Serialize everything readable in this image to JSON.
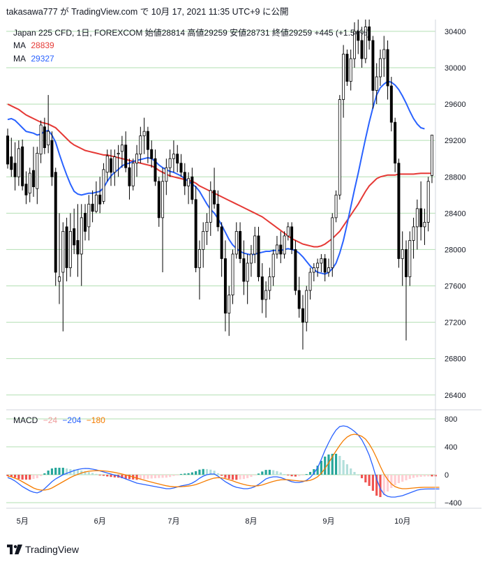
{
  "header": {
    "text": "takasawa777 が TradingView.com で 10月 17, 2021 11:35 UTC+9 に公開"
  },
  "legend": {
    "symbol_line": "Japan 225 CFD, 1日, FOREXCOM  始値28814  高値29259  安値28731  終値29259  +445 (+1.54%)",
    "ma1": {
      "label": "MA",
      "value": "28839",
      "color": "#e53935"
    },
    "ma2": {
      "label": "MA",
      "value": "29327",
      "color": "#2962ff"
    }
  },
  "macd_legend": {
    "label": "MACD",
    "hist": "−24",
    "macd": "−204",
    "signal": "−180",
    "hist_color": "#ef9a9a",
    "macd_color": "#2962ff",
    "signal_color": "#f57c00"
  },
  "footer": {
    "brand": "TradingView"
  },
  "colors": {
    "grid": "#b2dfb2",
    "up": "#ffffff",
    "down": "#000000",
    "wick": "#000000"
  },
  "chart_data": [
    {
      "type": "candlestick",
      "title": "Japan 225 CFD, 1日, FOREXCOM",
      "x_ticks": [
        "5月",
        "6月",
        "7月",
        "8月",
        "9月",
        "10月"
      ],
      "y_ticks": [
        30400,
        30000,
        29600,
        29200,
        28800,
        28400,
        28000,
        27600,
        27200,
        26800,
        26400
      ],
      "ylim": [
        26260,
        30530
      ],
      "last": {
        "open": 28814,
        "high": 29259,
        "low": 28731,
        "close": 29259,
        "change": 445,
        "change_pct": 1.54
      },
      "ohlc": [
        [
          29250,
          29330,
          28890,
          28940
        ],
        [
          29020,
          29230,
          28800,
          28880
        ],
        [
          28950,
          29180,
          28650,
          28800
        ],
        [
          28800,
          29200,
          28700,
          29110
        ],
        [
          29130,
          29210,
          28650,
          28700
        ],
        [
          28720,
          28860,
          28500,
          28600
        ],
        [
          28620,
          28900,
          28520,
          28840
        ],
        [
          28870,
          29130,
          28580,
          28690
        ],
        [
          28670,
          29130,
          28500,
          29060
        ],
        [
          29050,
          29420,
          28950,
          29370
        ],
        [
          29350,
          29450,
          29050,
          29120
        ],
        [
          29150,
          29700,
          29060,
          29300
        ],
        [
          29200,
          29300,
          28700,
          28800
        ],
        [
          28850,
          28900,
          27600,
          27750
        ],
        [
          27650,
          28400,
          27400,
          27700
        ],
        [
          27750,
          28300,
          27100,
          28200
        ],
        [
          28250,
          28350,
          27650,
          27800
        ],
        [
          27800,
          28400,
          27700,
          28200
        ],
        [
          28230,
          28450,
          27950,
          28050
        ],
        [
          28100,
          28500,
          27700,
          27950
        ],
        [
          27950,
          28500,
          27600,
          28350
        ],
        [
          28400,
          28500,
          28100,
          28200
        ],
        [
          28250,
          28600,
          28100,
          28500
        ],
        [
          28500,
          28650,
          28300,
          28420
        ],
        [
          28420,
          28750,
          28400,
          28600
        ],
        [
          28600,
          28800,
          28400,
          28500
        ],
        [
          28530,
          28950,
          28500,
          28880
        ],
        [
          28850,
          29100,
          28750,
          29030
        ],
        [
          29000,
          29100,
          28700,
          28850
        ],
        [
          28850,
          29100,
          28700,
          29020
        ],
        [
          29050,
          29150,
          28800,
          29060
        ],
        [
          29080,
          29250,
          28900,
          29150
        ],
        [
          29150,
          29300,
          28850,
          28900
        ],
        [
          28900,
          29000,
          28550,
          28700
        ],
        [
          28700,
          29000,
          28650,
          28950
        ],
        [
          28950,
          29150,
          28800,
          29050
        ],
        [
          29050,
          29350,
          28950,
          29250
        ],
        [
          29250,
          29450,
          29050,
          29300
        ],
        [
          29300,
          29350,
          28950,
          29100
        ],
        [
          29100,
          29200,
          28900,
          29000
        ],
        [
          29000,
          29100,
          28700,
          28750
        ],
        [
          28750,
          28800,
          28250,
          28350
        ],
        [
          28350,
          28900,
          27750,
          28750
        ],
        [
          28750,
          29000,
          28600,
          28900
        ],
        [
          28900,
          29100,
          28800,
          29000
        ],
        [
          29000,
          29200,
          28850,
          29050
        ],
        [
          29050,
          29150,
          28850,
          28950
        ],
        [
          28950,
          29050,
          28800,
          28850
        ],
        [
          28850,
          28950,
          28600,
          28700
        ],
        [
          28700,
          28850,
          28500,
          28780
        ],
        [
          28800,
          28900,
          28500,
          28550
        ],
        [
          28550,
          28700,
          27750,
          27800
        ],
        [
          27800,
          28100,
          27450,
          28000
        ],
        [
          28000,
          28300,
          27800,
          28200
        ],
        [
          28200,
          28400,
          28050,
          28300
        ],
        [
          28300,
          28750,
          28150,
          28650
        ],
        [
          28650,
          28900,
          28450,
          28500
        ],
        [
          28500,
          28650,
          28200,
          28250
        ],
        [
          28250,
          28300,
          27700,
          27900
        ],
        [
          27900,
          28100,
          27100,
          27300
        ],
        [
          27300,
          27600,
          27050,
          27500
        ],
        [
          27500,
          28000,
          27400,
          27950
        ],
        [
          27950,
          28300,
          27900,
          28200
        ],
        [
          28200,
          28300,
          27850,
          27900
        ],
        [
          27900,
          28100,
          27500,
          27650
        ],
        [
          27650,
          27950,
          27400,
          27850
        ],
        [
          27850,
          28050,
          27700,
          27950
        ],
        [
          27950,
          28250,
          27850,
          28150
        ],
        [
          28150,
          28250,
          27650,
          27700
        ],
        [
          27700,
          27850,
          27300,
          27450
        ],
        [
          27450,
          27650,
          27250,
          27550
        ],
        [
          27550,
          27800,
          27450,
          27700
        ],
        [
          27700,
          28000,
          27600,
          27950
        ],
        [
          27950,
          28150,
          27900,
          28050
        ],
        [
          28050,
          28200,
          27850,
          27950
        ],
        [
          27950,
          28200,
          27900,
          28150
        ],
        [
          28150,
          28300,
          28100,
          28250
        ],
        [
          28250,
          28300,
          27950,
          28000
        ],
        [
          28000,
          28100,
          27500,
          27550
        ],
        [
          27550,
          27700,
          27250,
          27350
        ],
        [
          27350,
          27500,
          26900,
          27200
        ],
        [
          27200,
          27600,
          27100,
          27550
        ],
        [
          27550,
          27800,
          27450,
          27750
        ],
        [
          27750,
          27850,
          27650,
          27800
        ],
        [
          27800,
          27900,
          27700,
          27850
        ],
        [
          27850,
          27950,
          27750,
          27900
        ],
        [
          27900,
          27950,
          27650,
          27750
        ],
        [
          27750,
          27900,
          27700,
          27800
        ],
        [
          27800,
          28400,
          27700,
          28350
        ],
        [
          28350,
          28650,
          28300,
          28600
        ],
        [
          28600,
          29700,
          28550,
          29650
        ],
        [
          29650,
          30250,
          29450,
          30150
        ],
        [
          30150,
          30200,
          29800,
          29850
        ],
        [
          29850,
          30200,
          29750,
          30100
        ],
        [
          30100,
          30500,
          30000,
          30400
        ],
        [
          30400,
          30550,
          30150,
          30300
        ],
        [
          30300,
          30450,
          30000,
          30100
        ],
        [
          30100,
          30550,
          30050,
          30450
        ],
        [
          30450,
          30550,
          30200,
          30300
        ],
        [
          30300,
          30350,
          29550,
          29750
        ],
        [
          29750,
          30050,
          29600,
          29900
        ],
        [
          29900,
          30200,
          29800,
          30100
        ],
        [
          30100,
          30350,
          29900,
          30200
        ],
        [
          30200,
          30300,
          29650,
          29800
        ],
        [
          29800,
          29900,
          29300,
          29400
        ],
        [
          29400,
          29450,
          28850,
          28950
        ],
        [
          28950,
          29000,
          27800,
          27900
        ],
        [
          27900,
          28200,
          27600,
          28000
        ],
        [
          28000,
          28100,
          27000,
          27700
        ],
        [
          27700,
          28200,
          27600,
          28100
        ],
        [
          28100,
          28350,
          27900,
          28250
        ],
        [
          28250,
          28550,
          28000,
          28450
        ],
        [
          28450,
          28750,
          28100,
          28250
        ],
        [
          28250,
          28450,
          28050,
          28300
        ],
        [
          28300,
          28800,
          28200,
          28750
        ],
        [
          28814,
          29259,
          28731,
          29259
        ]
      ],
      "ma_fast": [
        29430,
        29440,
        29420,
        29380,
        29340,
        29300,
        29290,
        29280,
        29260,
        29270,
        29300,
        29310,
        29260,
        29180,
        29050,
        28930,
        28820,
        28720,
        28640,
        28610,
        28600,
        28610,
        28620,
        28620,
        28630,
        28640,
        28680,
        28750,
        28810,
        28850,
        28880,
        28920,
        28940,
        28950,
        28970,
        28980,
        28990,
        29000,
        29010,
        29000,
        28970,
        28930,
        28900,
        28880,
        28860,
        28850,
        28830,
        28810,
        28780,
        28750,
        28720,
        28690,
        28640,
        28570,
        28500,
        28440,
        28400,
        28340,
        28270,
        28190,
        28110,
        28050,
        28010,
        27980,
        27960,
        27950,
        27940,
        27950,
        27960,
        27970,
        27980,
        27980,
        27990,
        27990,
        27990,
        28000,
        28010,
        28000,
        27990,
        27960,
        27920,
        27870,
        27820,
        27780,
        27750,
        27740,
        27730,
        27750,
        27790,
        27850,
        27960,
        28100,
        28280,
        28470,
        28660,
        28840,
        29030,
        29220,
        29400,
        29560,
        29700,
        29780,
        29820,
        29850,
        29840,
        29810,
        29760,
        29690,
        29610,
        29520,
        29440,
        29380,
        29340,
        29327
      ],
      "ma_slow": [
        29600,
        29580,
        29560,
        29540,
        29510,
        29480,
        29460,
        29440,
        29420,
        29400,
        29390,
        29380,
        29360,
        29340,
        29300,
        29260,
        29220,
        29180,
        29150,
        29130,
        29110,
        29090,
        29080,
        29070,
        29060,
        29050,
        29040,
        29040,
        29030,
        29020,
        29010,
        29000,
        28990,
        28980,
        28970,
        28960,
        28950,
        28940,
        28930,
        28920,
        28900,
        28870,
        28850,
        28830,
        28810,
        28800,
        28790,
        28780,
        28770,
        28760,
        28750,
        28730,
        28700,
        28680,
        28660,
        28640,
        28620,
        28600,
        28580,
        28560,
        28540,
        28520,
        28500,
        28480,
        28460,
        28440,
        28420,
        28400,
        28380,
        28360,
        28330,
        28300,
        28270,
        28240,
        28210,
        28180,
        28150,
        28120,
        28100,
        28080,
        28060,
        28050,
        28040,
        28030,
        28030,
        28040,
        28060,
        28090,
        28120,
        28160,
        28200,
        28260,
        28320,
        28380,
        28440,
        28500,
        28570,
        28640,
        28700,
        28740,
        28780,
        28800,
        28810,
        28820,
        28820,
        28820,
        28830,
        28830,
        28830,
        28830,
        28830,
        28835,
        28839,
        28839,
        28839,
        28839
      ],
      "macd_ylim": [
        -480,
        900
      ],
      "macd_y_ticks": [
        800,
        400,
        0,
        -400
      ],
      "macd": [
        -40,
        -60,
        -90,
        -130,
        -170,
        -200,
        -230,
        -250,
        -260,
        -240,
        -200,
        -150,
        -100,
        -60,
        -30,
        0,
        20,
        40,
        60,
        75,
        85,
        90,
        88,
        80,
        70,
        55,
        40,
        25,
        10,
        -5,
        -20,
        -40,
        -60,
        -80,
        -100,
        -120,
        -130,
        -140,
        -150,
        -160,
        -170,
        -180,
        -190,
        -200,
        -200,
        -190,
        -175,
        -160,
        -150,
        -140,
        -120,
        -90,
        -50,
        -20,
        0,
        10,
        10,
        -20,
        -60,
        -100,
        -130,
        -160,
        -180,
        -190,
        -200,
        -200,
        -190,
        -170,
        -140,
        -100,
        -60,
        -40,
        -30,
        -30,
        -40,
        -60,
        -80,
        -100,
        -110,
        -110,
        -100,
        -80,
        -40,
        20,
        100,
        220,
        350,
        460,
        560,
        640,
        690,
        700,
        690,
        660,
        620,
        570,
        500,
        400,
        280,
        120,
        -60,
        -200,
        -280,
        -310,
        -320,
        -320,
        -310,
        -300,
        -280,
        -260,
        -240,
        -220,
        -210,
        -205,
        -204,
        -204,
        -204,
        -204
      ],
      "signal": [
        -20,
        -30,
        -50,
        -70,
        -100,
        -130,
        -160,
        -190,
        -210,
        -220,
        -220,
        -210,
        -190,
        -160,
        -130,
        -100,
        -70,
        -40,
        -15,
        5,
        25,
        40,
        50,
        55,
        58,
        58,
        55,
        50,
        42,
        33,
        22,
        10,
        -3,
        -17,
        -32,
        -47,
        -62,
        -77,
        -92,
        -106,
        -120,
        -133,
        -146,
        -158,
        -167,
        -172,
        -173,
        -171,
        -167,
        -162,
        -154,
        -141,
        -123,
        -102,
        -81,
        -63,
        -48,
        -42,
        -45,
        -56,
        -71,
        -88,
        -107,
        -124,
        -139,
        -151,
        -159,
        -161,
        -157,
        -146,
        -129,
        -111,
        -95,
        -82,
        -73,
        -70,
        -72,
        -78,
        -84,
        -89,
        -91,
        -89,
        -80,
        -60,
        -30,
        20,
        90,
        170,
        260,
        340,
        420,
        490,
        540,
        570,
        580,
        570,
        550,
        510,
        440,
        350,
        240,
        120,
        10,
        -70,
        -130,
        -170,
        -190,
        -200,
        -200,
        -195,
        -190,
        -185,
        -182,
        -180,
        -180,
        -180,
        -180,
        -180
      ],
      "hist": [
        -20,
        -30,
        -40,
        -60,
        -70,
        -70,
        -70,
        -60,
        -50,
        -20,
        20,
        60,
        90,
        100,
        100,
        100,
        90,
        80,
        75,
        70,
        60,
        50,
        38,
        25,
        12,
        -3,
        -15,
        -25,
        -32,
        -38,
        -42,
        -50,
        -57,
        -63,
        -68,
        -73,
        -68,
        -63,
        -58,
        -54,
        -50,
        -47,
        -44,
        -42,
        -33,
        -18,
        -2,
        11,
        17,
        22,
        34,
        51,
        73,
        82,
        81,
        73,
        58,
        22,
        -15,
        -44,
        -59,
        -72,
        -73,
        -66,
        -61,
        -49,
        -31,
        -9,
        17,
        46,
        69,
        71,
        65,
        52,
        33,
        10,
        -8,
        -22,
        -26,
        -21,
        -9,
        9,
        40,
        80,
        130,
        200,
        260,
        290,
        300,
        300,
        270,
        210,
        150,
        90,
        40,
        0,
        -50,
        -110,
        -160,
        -230,
        -300,
        -320,
        -290,
        -240,
        -190,
        -150,
        -120,
        -100,
        -80,
        -60,
        -45,
        -35,
        -30,
        -25,
        -24,
        -24,
        -24
      ]
    }
  ]
}
